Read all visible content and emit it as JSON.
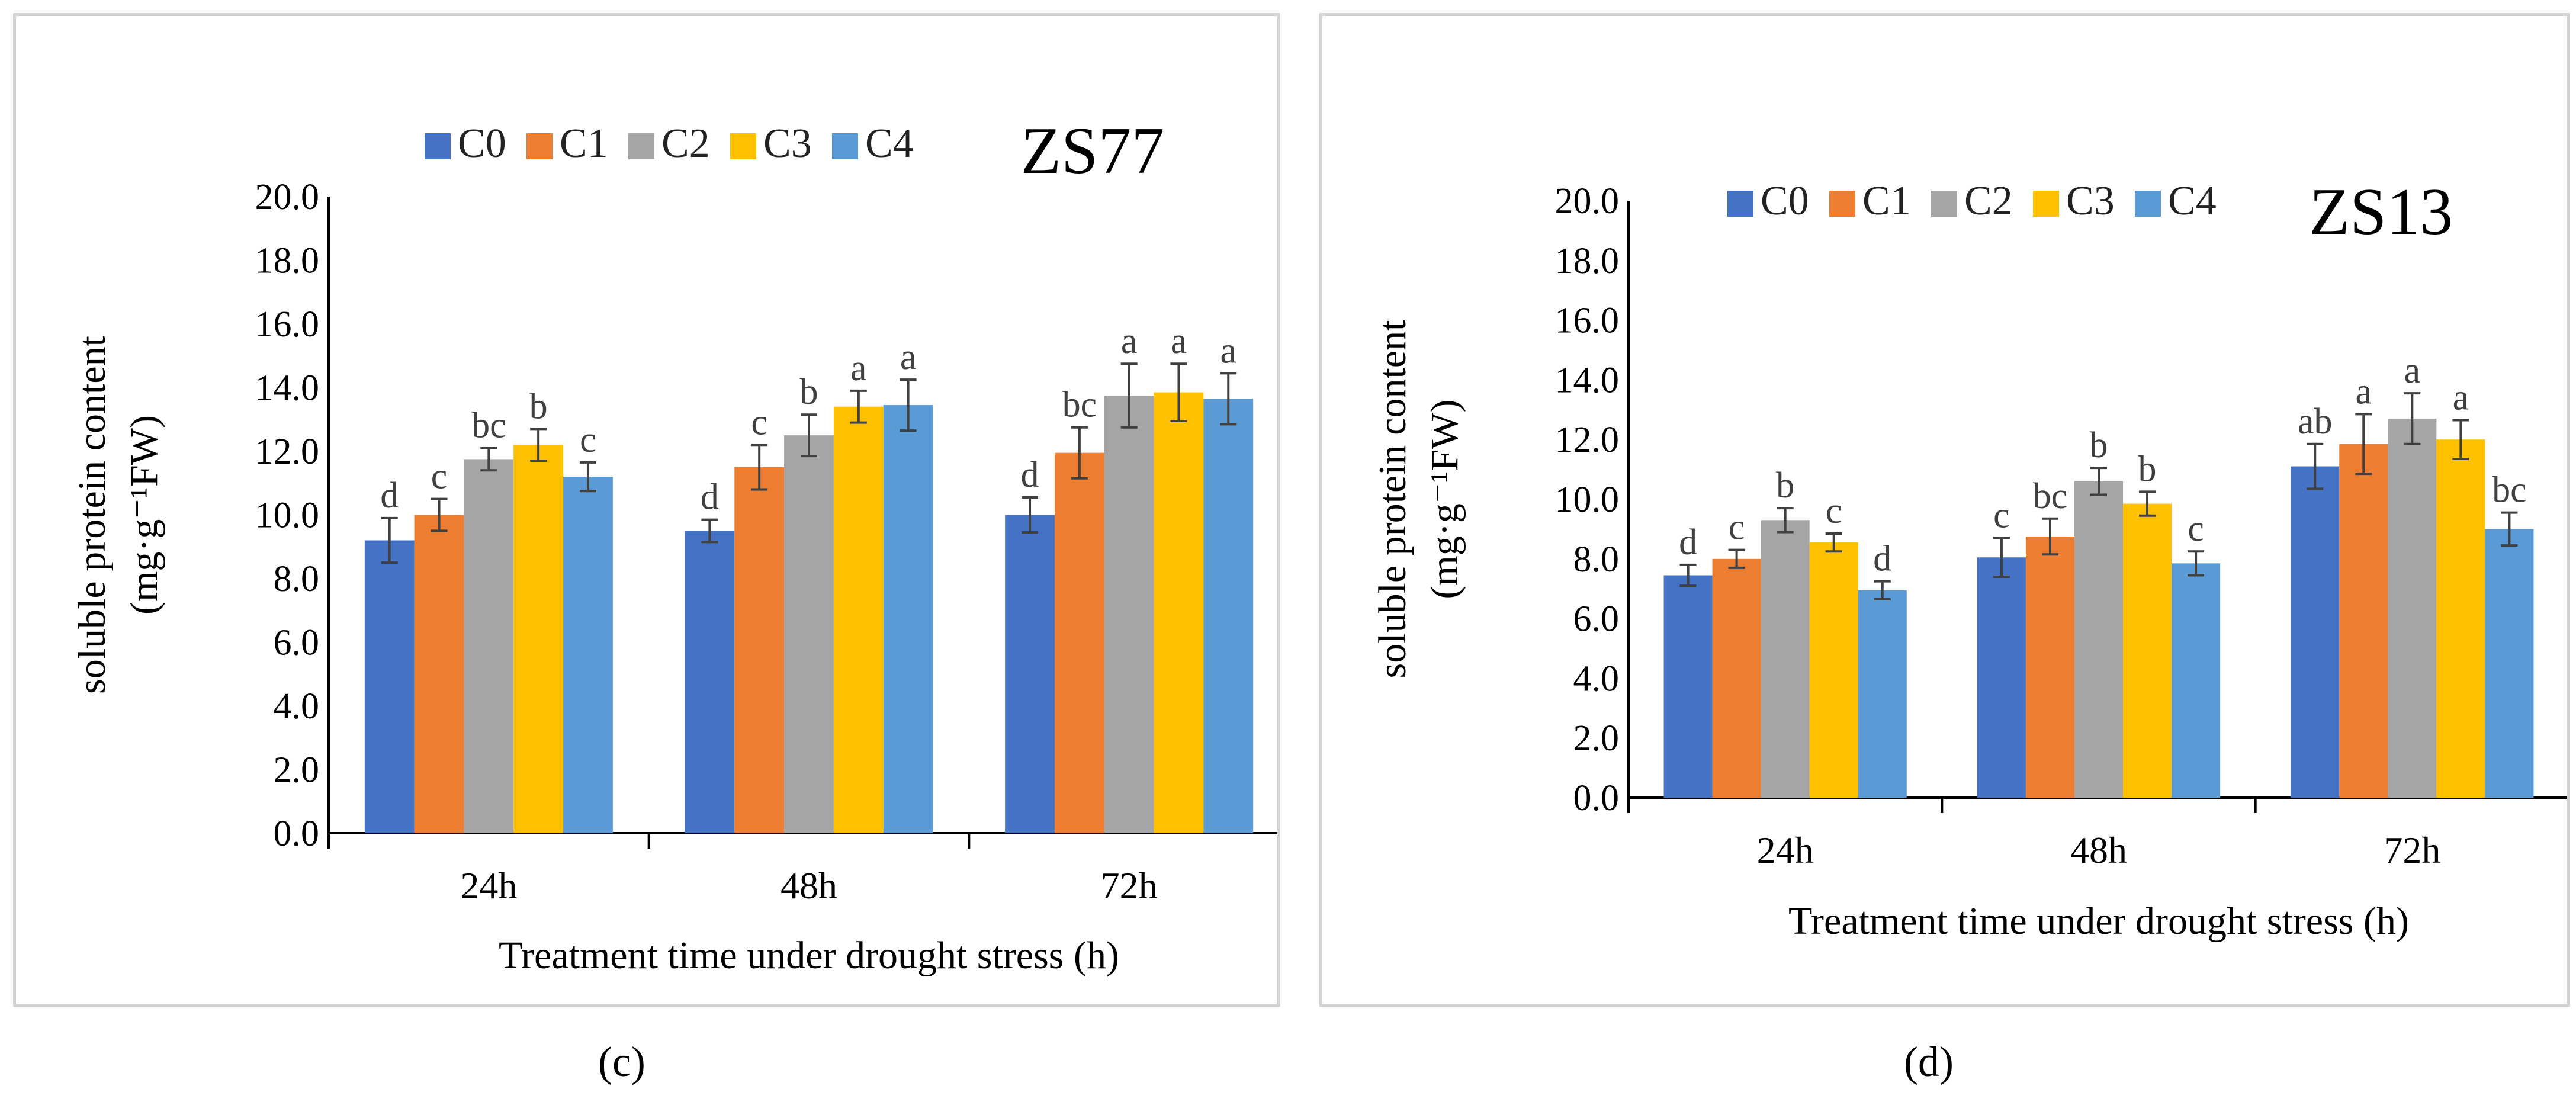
{
  "chart_data": [
    {
      "id": "c",
      "type": "bar",
      "title": "ZS77",
      "panel_label": "(c)",
      "xlabel": "Treatment time under drought stress (h)",
      "ylabel_line1": "soluble protein content",
      "ylabel_line2": "(mg·g⁻¹FW)",
      "ylim": [
        0,
        20
      ],
      "yticks": [
        "0.0",
        "2.0",
        "4.0",
        "6.0",
        "8.0",
        "10.0",
        "12.0",
        "14.0",
        "16.0",
        "18.0",
        "20.0"
      ],
      "categories": [
        "24h",
        "48h",
        "72h"
      ],
      "legend_position": "top",
      "series": [
        {
          "name": "C0",
          "color": "#4472C4",
          "values": [
            9.2,
            9.5,
            10.0
          ],
          "errors": [
            0.7,
            0.35,
            0.55
          ],
          "letters": [
            "d",
            "d",
            "d"
          ]
        },
        {
          "name": "C1",
          "color": "#ED7D31",
          "values": [
            10.0,
            11.5,
            11.95
          ],
          "errors": [
            0.5,
            0.7,
            0.8
          ],
          "letters": [
            "c",
            "c",
            "bc"
          ]
        },
        {
          "name": "C2",
          "color": "#A5A5A5",
          "values": [
            11.75,
            12.5,
            13.75
          ],
          "errors": [
            0.35,
            0.65,
            1.0
          ],
          "letters": [
            "bc",
            "b",
            "a"
          ]
        },
        {
          "name": "C3",
          "color": "#FFC000",
          "values": [
            12.2,
            13.4,
            13.85
          ],
          "errors": [
            0.5,
            0.5,
            0.9
          ],
          "letters": [
            "b",
            "a",
            "a"
          ]
        },
        {
          "name": "C4",
          "color": "#5B9BD5",
          "values": [
            11.2,
            13.45,
            13.65
          ],
          "errors": [
            0.45,
            0.8,
            0.8
          ],
          "letters": [
            "c",
            "a",
            "a"
          ]
        }
      ]
    },
    {
      "id": "d",
      "type": "bar",
      "title": "ZS13",
      "panel_label": "(d)",
      "xlabel": "Treatment time under drought stress (h)",
      "ylabel_line1": "soluble protein content",
      "ylabel_line2": "(mg·g⁻¹FW)",
      "ylim": [
        0,
        20
      ],
      "yticks": [
        "0.0",
        "2.0",
        "4.0",
        "6.0",
        "8.0",
        "10.0",
        "12.0",
        "14.0",
        "16.0",
        "18.0",
        "20.0"
      ],
      "categories": [
        "24h",
        "48h",
        "72h"
      ],
      "legend_position": "top",
      "series": [
        {
          "name": "C0",
          "color": "#4472C4",
          "values": [
            7.45,
            8.05,
            11.1
          ],
          "errors": [
            0.35,
            0.65,
            0.75
          ],
          "letters": [
            "d",
            "c",
            "ab"
          ]
        },
        {
          "name": "C1",
          "color": "#ED7D31",
          "values": [
            8.0,
            8.75,
            11.85
          ],
          "errors": [
            0.3,
            0.6,
            1.0
          ],
          "letters": [
            "c",
            "bc",
            "a"
          ]
        },
        {
          "name": "C2",
          "color": "#A5A5A5",
          "values": [
            9.3,
            10.6,
            12.7
          ],
          "errors": [
            0.4,
            0.45,
            0.85
          ],
          "letters": [
            "b",
            "b",
            "a"
          ]
        },
        {
          "name": "C3",
          "color": "#FFC000",
          "values": [
            8.55,
            9.85,
            12.0
          ],
          "errors": [
            0.3,
            0.4,
            0.65
          ],
          "letters": [
            "c",
            "b",
            "a"
          ]
        },
        {
          "name": "C4",
          "color": "#5B9BD5",
          "values": [
            6.95,
            7.85,
            9.0
          ],
          "errors": [
            0.3,
            0.4,
            0.55
          ],
          "letters": [
            "d",
            "c",
            "bc"
          ]
        }
      ]
    }
  ]
}
